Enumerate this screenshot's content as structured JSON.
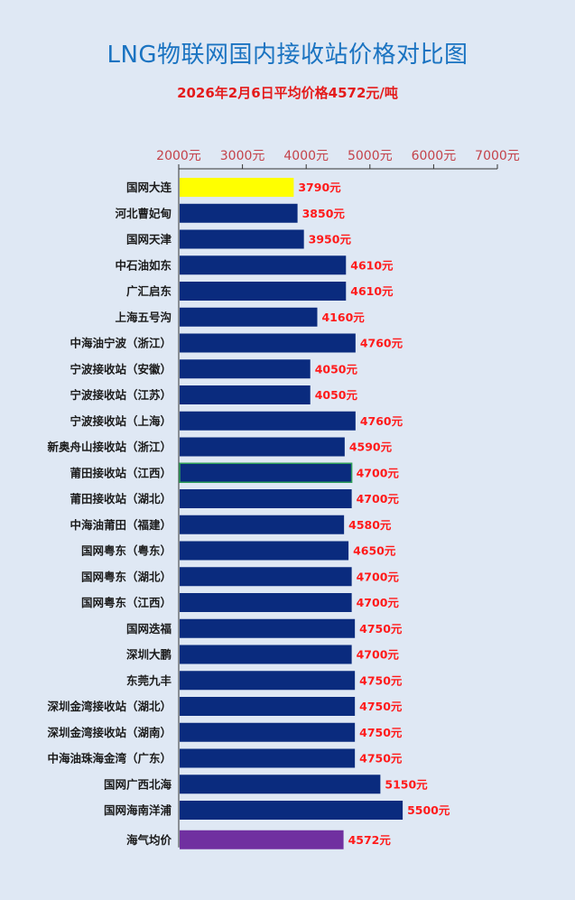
{
  "header": {
    "title": "LNG物联网国内接收站价格对比图",
    "subtitle": "2026年2月6日平均价格4572元/吨"
  },
  "chart_data": {
    "type": "bar",
    "orientation": "horizontal",
    "title": "LNG物联网国内接收站价格对比图",
    "subtitle": "2026年2月6日平均价格4572元/吨",
    "xlim": [
      2000,
      7000
    ],
    "x_ticks": [
      "2000元",
      "3000元",
      "4000元",
      "5000元",
      "6000元",
      "7000元"
    ],
    "value_suffix": "元",
    "colors": {
      "default": "#0a2b7e",
      "highlight": "#ffff00",
      "average": "#7030a0",
      "label": "#ff1a1a"
    },
    "categories": [
      "国网大连",
      "河北曹妃甸",
      "国网天津",
      "中石油如东",
      "广汇启东",
      "上海五号沟",
      "中海油宁波（浙江）",
      "宁波接收站（安徽）",
      "宁波接收站（江苏）",
      "宁波接收站（上海）",
      "新奥舟山接收站（浙江）",
      "莆田接收站（江西）",
      "莆田接收站（湖北）",
      "中海油莆田（福建）",
      "国网粤东（粤东）",
      "国网粤东（湖北）",
      "国网粤东（江西）",
      "国网迭福",
      "深圳大鹏",
      "东莞九丰",
      "深圳金湾接收站（湖北）",
      "深圳金湾接收站（湖南）",
      "中海油珠海金湾（广东）",
      "国网广西北海",
      "国网海南洋浦",
      "海气均价"
    ],
    "values": [
      3790,
      3850,
      3950,
      4610,
      4610,
      4160,
      4760,
      4050,
      4050,
      4760,
      4590,
      4700,
      4700,
      4580,
      4650,
      4700,
      4700,
      4750,
      4700,
      4750,
      4750,
      4750,
      4750,
      5150,
      5500,
      4572
    ],
    "value_labels": [
      "3790元",
      "3850元",
      "3950元",
      "4610元",
      "4610元",
      "4160元",
      "4760元",
      "4050元",
      "4050元",
      "4760元",
      "4590元",
      "4700元",
      "4700元",
      "4580元",
      "4650元",
      "4700元",
      "4700元",
      "4750元",
      "4700元",
      "4750元",
      "4750元",
      "4750元",
      "4750元",
      "5150元",
      "5500元",
      "4572元"
    ],
    "bar_styles": [
      "highlight",
      "default",
      "default",
      "default",
      "default",
      "default",
      "default",
      "default",
      "default",
      "default",
      "default",
      "default",
      "default",
      "default",
      "default",
      "default",
      "default",
      "default",
      "default",
      "default",
      "default",
      "default",
      "default",
      "default",
      "default",
      "average"
    ]
  }
}
